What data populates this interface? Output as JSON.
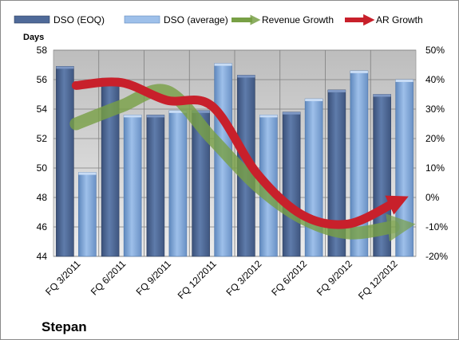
{
  "chart_data": {
    "type": "bar",
    "title": "",
    "company": "Stepan",
    "y_left_label": "Days",
    "y_left_lim": [
      44,
      58
    ],
    "y_left_ticks": [
      "44",
      "46",
      "48",
      "50",
      "52",
      "54",
      "56",
      "58"
    ],
    "y_right_lim": [
      -20,
      50
    ],
    "y_right_ticks": [
      "-20%",
      "-10%",
      "0%",
      "10%",
      "20%",
      "30%",
      "40%",
      "50%"
    ],
    "categories": [
      "FQ 3/2011",
      "FQ 6/2011",
      "FQ 9/2011",
      "FQ 12/2011",
      "FQ 3/2012",
      "FQ 6/2012",
      "FQ 9/2012",
      "FQ 12/2012"
    ],
    "series": [
      {
        "name": "DSO (EOQ)",
        "kind": "bar",
        "axis": "left",
        "color": "#4f6a99",
        "values": [
          56.9,
          56.1,
          53.6,
          53.9,
          56.3,
          53.8,
          55.3,
          55.0
        ]
      },
      {
        "name": "DSO (average)",
        "kind": "bar",
        "axis": "left",
        "color": "#7ea6d9",
        "values": [
          49.7,
          53.6,
          53.9,
          57.1,
          53.6,
          54.7,
          56.6,
          56.0
        ]
      },
      {
        "name": "Revenue Growth",
        "kind": "line",
        "axis": "right",
        "color": "#78a045",
        "values": [
          25,
          31,
          36,
          20,
          4,
          -7,
          -12,
          -10
        ]
      },
      {
        "name": "AR Growth",
        "kind": "line",
        "axis": "right",
        "color": "#c8202b",
        "values": [
          38,
          39,
          33,
          31,
          8,
          -6,
          -9,
          -2
        ]
      }
    ],
    "grid": true,
    "legend": "top"
  }
}
